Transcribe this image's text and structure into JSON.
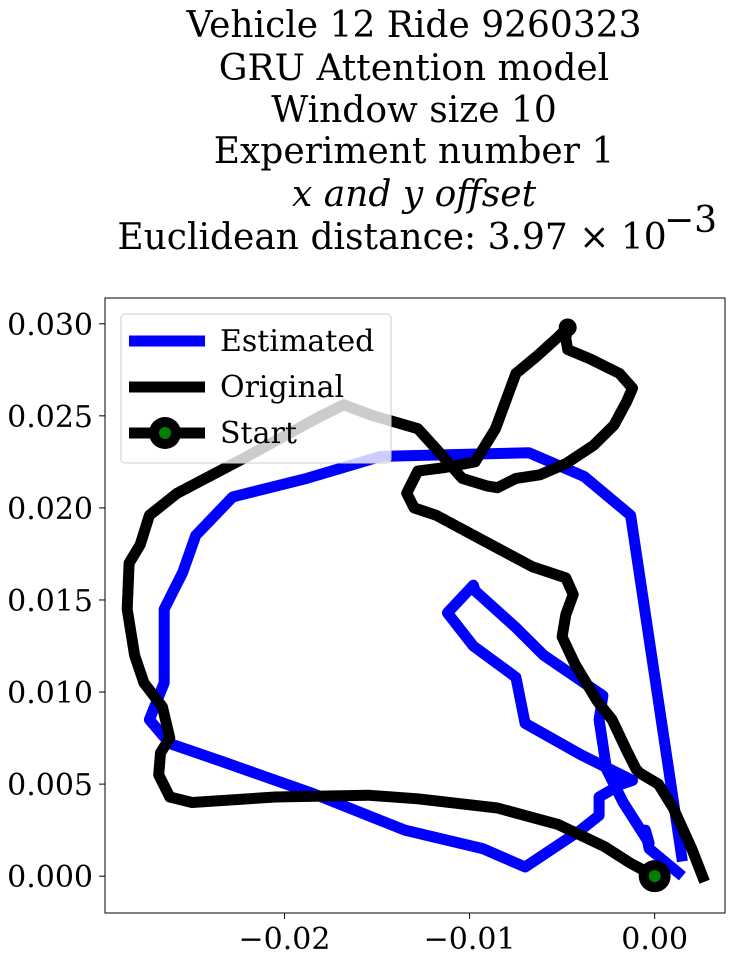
{
  "chart_data": {
    "type": "line",
    "title_lines": [
      "Vehicle 12 Ride 9260323",
      "GRU Attention model",
      "Window size 10",
      "Experiment number 1",
      "x and y offset",
      "Euclidean distance: 3.97 × 10",
      "−3"
    ],
    "xlabel": "",
    "ylabel": "",
    "xlim": [
      -0.0297,
      0.0038
    ],
    "ylim": [
      -0.002,
      0.0314
    ],
    "xticks": [
      -0.02,
      -0.01,
      0.0
    ],
    "xtick_labels": [
      "−0.02",
      "−0.01",
      "0.00"
    ],
    "yticks": [
      0.0,
      0.005,
      0.01,
      0.015,
      0.02,
      0.025,
      0.03
    ],
    "ytick_labels": [
      "0.000",
      "0.005",
      "0.010",
      "0.015",
      "0.020",
      "0.025",
      "0.030"
    ],
    "grid": false,
    "legend_position": "top-left",
    "series": [
      {
        "name": "Estimated",
        "color": "#0000ff",
        "x": [
          0.0015,
          -0.0003,
          -0.0005,
          -0.0003,
          -0.0017,
          -0.0026,
          -0.003,
          -0.0028,
          -0.006,
          -0.0075,
          -0.0097,
          -0.0098,
          -0.0112,
          -0.0098,
          -0.0075,
          -0.007,
          -0.004,
          -0.0012,
          -0.0018,
          -0.003,
          -0.003,
          -0.004,
          -0.007,
          -0.0093,
          -0.0135,
          -0.0185,
          -0.0233,
          -0.0262,
          -0.0273,
          -0.0265,
          -0.0265,
          -0.0255,
          -0.0248,
          -0.0228,
          -0.0188,
          -0.0148,
          -0.0068,
          -0.0038,
          -0.0013,
          0.0015
        ],
        "y": [
          0.0,
          0.0015,
          0.0025,
          0.0018,
          0.004,
          0.0058,
          0.0085,
          0.0098,
          0.012,
          0.0135,
          0.0155,
          0.0158,
          0.0143,
          0.0125,
          0.0108,
          0.0083,
          0.0066,
          0.0052,
          0.005,
          0.0043,
          0.0033,
          0.0025,
          0.0005,
          0.0015,
          0.0025,
          0.0045,
          0.0062,
          0.0072,
          0.0085,
          0.0105,
          0.0145,
          0.0165,
          0.0185,
          0.0206,
          0.0216,
          0.0228,
          0.023,
          0.0217,
          0.0196,
          0.0008
        ]
      },
      {
        "name": "Original",
        "color": "#000000",
        "x": [
          0.0,
          -0.0013,
          -0.0027,
          -0.0052,
          -0.0085,
          -0.0128,
          -0.0155,
          -0.0205,
          -0.025,
          -0.0262,
          -0.0268,
          -0.0267,
          -0.0262,
          -0.0266,
          -0.0276,
          -0.0281,
          -0.0285,
          -0.0284,
          -0.0278,
          -0.0273,
          -0.0258,
          -0.0222,
          -0.0182,
          -0.0168,
          -0.0152,
          -0.0128,
          -0.0118,
          -0.0104,
          -0.0091,
          -0.0085,
          -0.0075,
          -0.0062,
          -0.0048,
          -0.0033,
          -0.0022,
          -0.0015,
          -0.0012,
          -0.0019,
          -0.0035,
          -0.0047,
          -0.0048,
          -0.0047,
          -0.0052,
          -0.0063,
          -0.0075,
          -0.0086,
          -0.0097,
          -0.0113,
          -0.0128,
          -0.0134,
          -0.013,
          -0.0118,
          -0.0092,
          -0.0066,
          -0.0048,
          -0.0044,
          -0.0048,
          -0.005,
          -0.0043,
          -0.0031,
          -0.0023,
          -0.0015,
          -0.001,
          -0.0008,
          0.0002,
          0.001,
          0.002,
          0.0027
        ],
        "y": [
          0.0,
          0.0007,
          0.0016,
          0.0028,
          0.0037,
          0.0042,
          0.0044,
          0.0043,
          0.004,
          0.0043,
          0.0055,
          0.0067,
          0.0075,
          0.0092,
          0.0105,
          0.012,
          0.0145,
          0.017,
          0.018,
          0.0196,
          0.0208,
          0.0227,
          0.0249,
          0.0256,
          0.025,
          0.0243,
          0.0232,
          0.0216,
          0.0212,
          0.0211,
          0.0216,
          0.0218,
          0.0224,
          0.0234,
          0.0245,
          0.0258,
          0.0265,
          0.0273,
          0.0281,
          0.0286,
          0.0292,
          0.0298,
          0.0293,
          0.0283,
          0.0273,
          0.0243,
          0.0225,
          0.0222,
          0.022,
          0.0208,
          0.02,
          0.0196,
          0.0182,
          0.0168,
          0.0162,
          0.0153,
          0.0142,
          0.013,
          0.0115,
          0.0095,
          0.0085,
          0.0068,
          0.0058,
          0.0056,
          0.005,
          0.0037,
          0.0015,
          -0.0003
        ]
      }
    ],
    "start_marker": {
      "name": "Start",
      "x": 0.0,
      "y": 0.0,
      "outer_color": "#000000",
      "inner_color": "#008000"
    }
  }
}
